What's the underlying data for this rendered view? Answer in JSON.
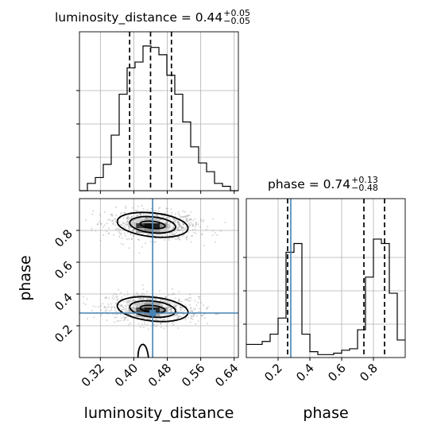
{
  "chart_data": {
    "type": "corner",
    "parameters": [
      "luminosity_distance",
      "phase"
    ],
    "truths": {
      "luminosity_distance": 0.445,
      "phase": 0.28
    },
    "titles": [
      {
        "param": "luminosity_distance",
        "label": "luminosity_distance = 0.44",
        "plus": "+0.05",
        "minus": "−0.05"
      },
      {
        "param": "phase",
        "label": "phase = 0.74",
        "plus": "+0.13",
        "minus": "−0.48"
      }
    ],
    "axes": {
      "luminosity_distance": {
        "label": "luminosity_distance",
        "range": [
          0.27,
          0.65
        ],
        "ticks": [
          0.32,
          0.4,
          0.48,
          0.56,
          0.64
        ],
        "tick_labels": [
          "0.32",
          "0.40",
          "0.48",
          "0.56",
          "0.64"
        ]
      },
      "phase": {
        "label": "phase",
        "range": [
          0.0,
          1.0
        ],
        "ticks": [
          0.2,
          0.4,
          0.6,
          0.8
        ],
        "tick_labels": [
          "0.2",
          "0.4",
          "0.6",
          "0.8"
        ]
      }
    },
    "quantiles": {
      "luminosity_distance": [
        0.39,
        0.44,
        0.49
      ],
      "phase": [
        0.26,
        0.74,
        0.87
      ]
    },
    "hist_luminosity_distance": {
      "edges": [
        0.27,
        0.289,
        0.308,
        0.327,
        0.346,
        0.365,
        0.384,
        0.403,
        0.422,
        0.441,
        0.46,
        0.479,
        0.498,
        0.517,
        0.536,
        0.555,
        0.574,
        0.593,
        0.612,
        0.631,
        0.65
      ],
      "values": [
        0.0,
        0.05,
        0.09,
        0.18,
        0.38,
        0.66,
        0.84,
        0.88,
        0.99,
        0.98,
        0.93,
        0.79,
        0.66,
        0.47,
        0.3,
        0.19,
        0.13,
        0.05,
        0.03,
        0.0
      ]
    },
    "hist_phase": {
      "edges": [
        0.0,
        0.05,
        0.1,
        0.15,
        0.2,
        0.25,
        0.3,
        0.35,
        0.4,
        0.45,
        0.5,
        0.55,
        0.6,
        0.65,
        0.7,
        0.75,
        0.8,
        0.85,
        0.9,
        0.95,
        1.0
      ],
      "values": [
        0.09,
        0.09,
        0.11,
        0.16,
        0.27,
        0.72,
        0.78,
        0.16,
        0.04,
        0.02,
        0.02,
        0.03,
        0.05,
        0.06,
        0.19,
        0.55,
        0.81,
        0.78,
        0.44,
        0.12
      ]
    },
    "density_2d": {
      "modes": [
        {
          "luminosity_distance": 0.445,
          "phase": 0.835
        },
        {
          "luminosity_distance": 0.445,
          "phase": 0.305
        }
      ]
    },
    "grid": true
  }
}
